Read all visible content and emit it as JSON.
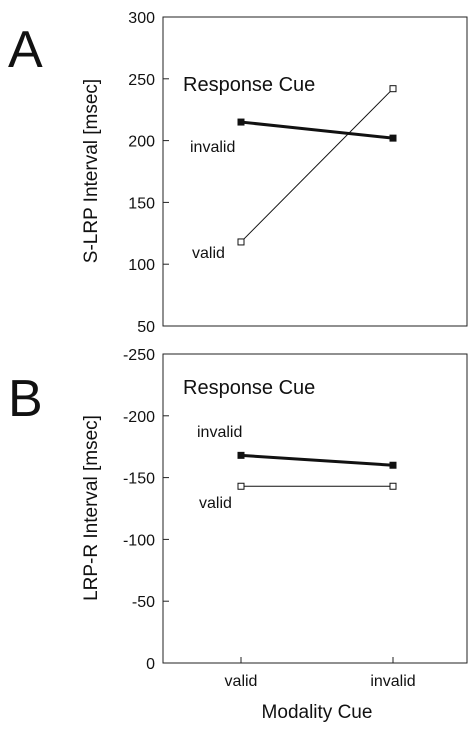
{
  "figure": {
    "xlabel": "Modality Cue"
  },
  "chart_data": [
    {
      "type": "line",
      "panel_label": "A",
      "annotation": "Response Cue",
      "ylabel": "S-LRP Interval [msec]",
      "categories": [
        "valid",
        "invalid"
      ],
      "ylim": [
        50,
        300
      ],
      "yticks": [
        "300",
        "250",
        "200",
        "150",
        "100",
        "50"
      ],
      "ytick_values": [
        300,
        250,
        200,
        150,
        100,
        50
      ],
      "inverted": false,
      "series": [
        {
          "name": "invalid",
          "values": [
            215,
            202
          ],
          "color": "#111111",
          "width": 3,
          "marker": "filled"
        },
        {
          "name": "valid",
          "values": [
            118,
            242
          ],
          "color": "#111111",
          "width": 1,
          "marker": "open"
        }
      ]
    },
    {
      "type": "line",
      "panel_label": "B",
      "annotation": "Response Cue",
      "ylabel": "LRP-R Interval [msec]",
      "categories": [
        "valid",
        "invalid"
      ],
      "ylim": [
        0,
        -250
      ],
      "yticks": [
        "-250",
        "-200",
        "-150",
        "-100",
        "-50",
        "0"
      ],
      "ytick_values": [
        -250,
        -200,
        -150,
        -100,
        -50,
        0
      ],
      "inverted": true,
      "series": [
        {
          "name": "invalid",
          "values": [
            -168,
            -160
          ],
          "color": "#111111",
          "width": 3,
          "marker": "filled"
        },
        {
          "name": "valid",
          "values": [
            -143,
            -143
          ],
          "color": "#111111",
          "width": 1,
          "marker": "open"
        }
      ]
    }
  ]
}
